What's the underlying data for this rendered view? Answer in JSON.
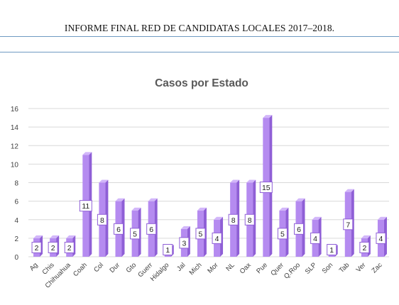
{
  "document": {
    "header_title": "INFORME FINAL RED DE CANDIDATAS LOCALES 2017–2018."
  },
  "colors": {
    "bar_front": "#b58bf0",
    "bar_side": "#8f5fd6",
    "bar_top": "#d2b6fa",
    "label_border": "#8f5fd6",
    "grid": "#d9d9d9",
    "axis_text": "#404040",
    "title_text": "#595959",
    "rule": "#6f9ac2"
  },
  "chart_data": {
    "type": "bar",
    "title": "Casos por Estado",
    "categories": [
      "Ag",
      "Chis",
      "Chihuahua",
      "Coah",
      "Col",
      "Dur",
      "Gto",
      "Guerr",
      "Hidalgo",
      "Jal",
      "Mich",
      "Mor",
      "NL",
      "Oax",
      "Pue",
      "Quer",
      "Q.Roo",
      "SLP",
      "Son",
      "Tab",
      "Ver",
      "Zac"
    ],
    "values": [
      2,
      2,
      2,
      11,
      8,
      6,
      5,
      6,
      1,
      3,
      5,
      4,
      8,
      8,
      15,
      5,
      6,
      4,
      1,
      7,
      2,
      4
    ],
    "ylim": [
      0,
      16
    ],
    "yticks": [
      0,
      2,
      4,
      6,
      8,
      10,
      12,
      14,
      16
    ],
    "grid": true,
    "legend": "none",
    "data_labels": true
  }
}
